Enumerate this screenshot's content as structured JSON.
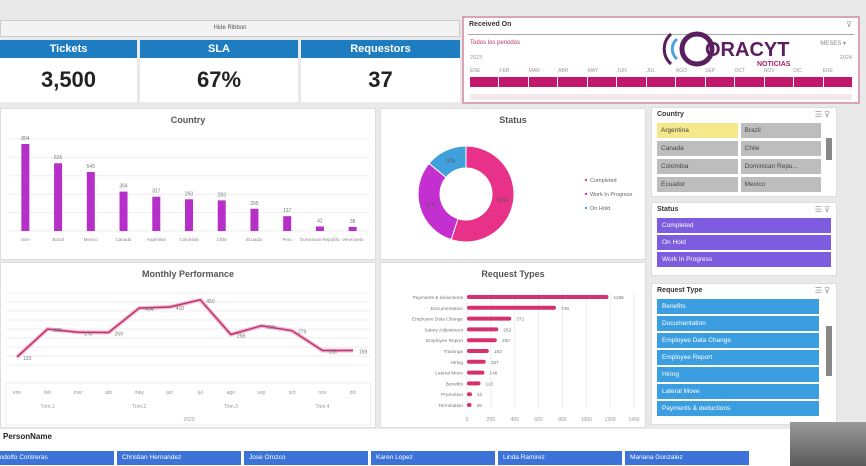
{
  "ribbon": {
    "label": "Hide Ribbon"
  },
  "kpis": [
    {
      "label": "Tickets",
      "value": "3,500"
    },
    {
      "label": "SLA",
      "value": "67%"
    },
    {
      "label": "Requestors",
      "value": "37"
    }
  ],
  "timeline": {
    "title": "Received On",
    "period": "Todos los periodos",
    "unit": "MESES",
    "year_start": "2023",
    "year_end": "2024",
    "months": [
      "ENE",
      "FEB",
      "MAR",
      "ABR",
      "MAY",
      "JUN",
      "JUL",
      "AGO",
      "SEP",
      "OCT",
      "NOV",
      "DIC",
      "ENE"
    ]
  },
  "logo": {
    "text": "CORACYT",
    "sub": "NOTICIAS"
  },
  "colors": {
    "header": "#1e7cc0",
    "bar": "#b62fc8",
    "line": "#b8346e",
    "reqbar": "#d6306e",
    "completed": "#e8328a",
    "wip": "#c42fd0",
    "onhold": "#3fa0dc",
    "status_slicer": "#7d5ce0",
    "req_slicer": "#3a9ee0",
    "name_slicer": "#3b73d8",
    "selected": "#f5e88a"
  },
  "chart_data": [
    {
      "type": "bar",
      "title": "Country",
      "categories": [
        "USA",
        "Brazil",
        "Mexico",
        "Canada",
        "Argentina",
        "Colombia",
        "Chile",
        "Ecuador",
        "Peru",
        "Dominican Republic",
        "Venezuela"
      ],
      "values": [
        804,
        626,
        545,
        364,
        317,
        293,
        283,
        205,
        137,
        42,
        38
      ]
    },
    {
      "type": "pie",
      "title": "Status",
      "categories": [
        "Completed",
        "Work In Progress",
        "On Hold"
      ],
      "values": [
        55,
        31,
        14
      ],
      "labels": [
        "55%",
        "31%",
        "14%"
      ],
      "legend": "right"
    },
    {
      "type": "line",
      "title": "Monthly Performance",
      "categories": [
        "ene",
        "feb",
        "mar",
        "abr",
        "may",
        "jun",
        "jul",
        "ago",
        "sep",
        "oct",
        "nov",
        "dic"
      ],
      "quarters": [
        "Trim.1",
        "Trim.2",
        "Trim.3",
        "Trim.4"
      ],
      "year": "2023",
      "values": [
        133,
        288,
        270,
        269,
        404,
        410,
        450,
        258,
        306,
        279,
        169,
        169
      ]
    },
    {
      "type": "bar",
      "orientation": "horizontal",
      "title": "Request Types",
      "categories": [
        "Payments & deductions",
        "Documentation",
        "Employee Data Change",
        "Salary Adjustment",
        "Employee Report",
        "Trainings",
        "Hiring",
        "Lateral Move",
        "Benefits",
        "Promotion",
        "Termination"
      ],
      "values": [
        1186,
        746,
        371,
        262,
        250,
        183,
        157,
        146,
        113,
        42,
        38
      ],
      "xticks": [
        0,
        200,
        400,
        600,
        800,
        1000,
        1200,
        1400
      ]
    }
  ],
  "slicers": {
    "country": {
      "title": "Country",
      "items": [
        "Argentina",
        "Brazil",
        "Canada",
        "Chile",
        "Colombia",
        "Dominican Repu...",
        "Ecuador",
        "Mexico"
      ],
      "selected": "Argentina"
    },
    "status": {
      "title": "Status",
      "items": [
        "Completed",
        "On Hold",
        "Work In Progress"
      ]
    },
    "request_type": {
      "title": "Request Type",
      "items": [
        "Benefits",
        "Documentation",
        "Employee Data Change",
        "Employee Report",
        "Hiring",
        "Lateral Move",
        "Payments & deductions"
      ]
    },
    "person": {
      "title": "PersonName",
      "items": [
        "Rodolfo Contreras",
        "Christian Hernandez",
        "Jose Orozco",
        "Karen Lopez",
        "Linda Ramirez",
        "Mariana Gonzalez"
      ]
    }
  }
}
